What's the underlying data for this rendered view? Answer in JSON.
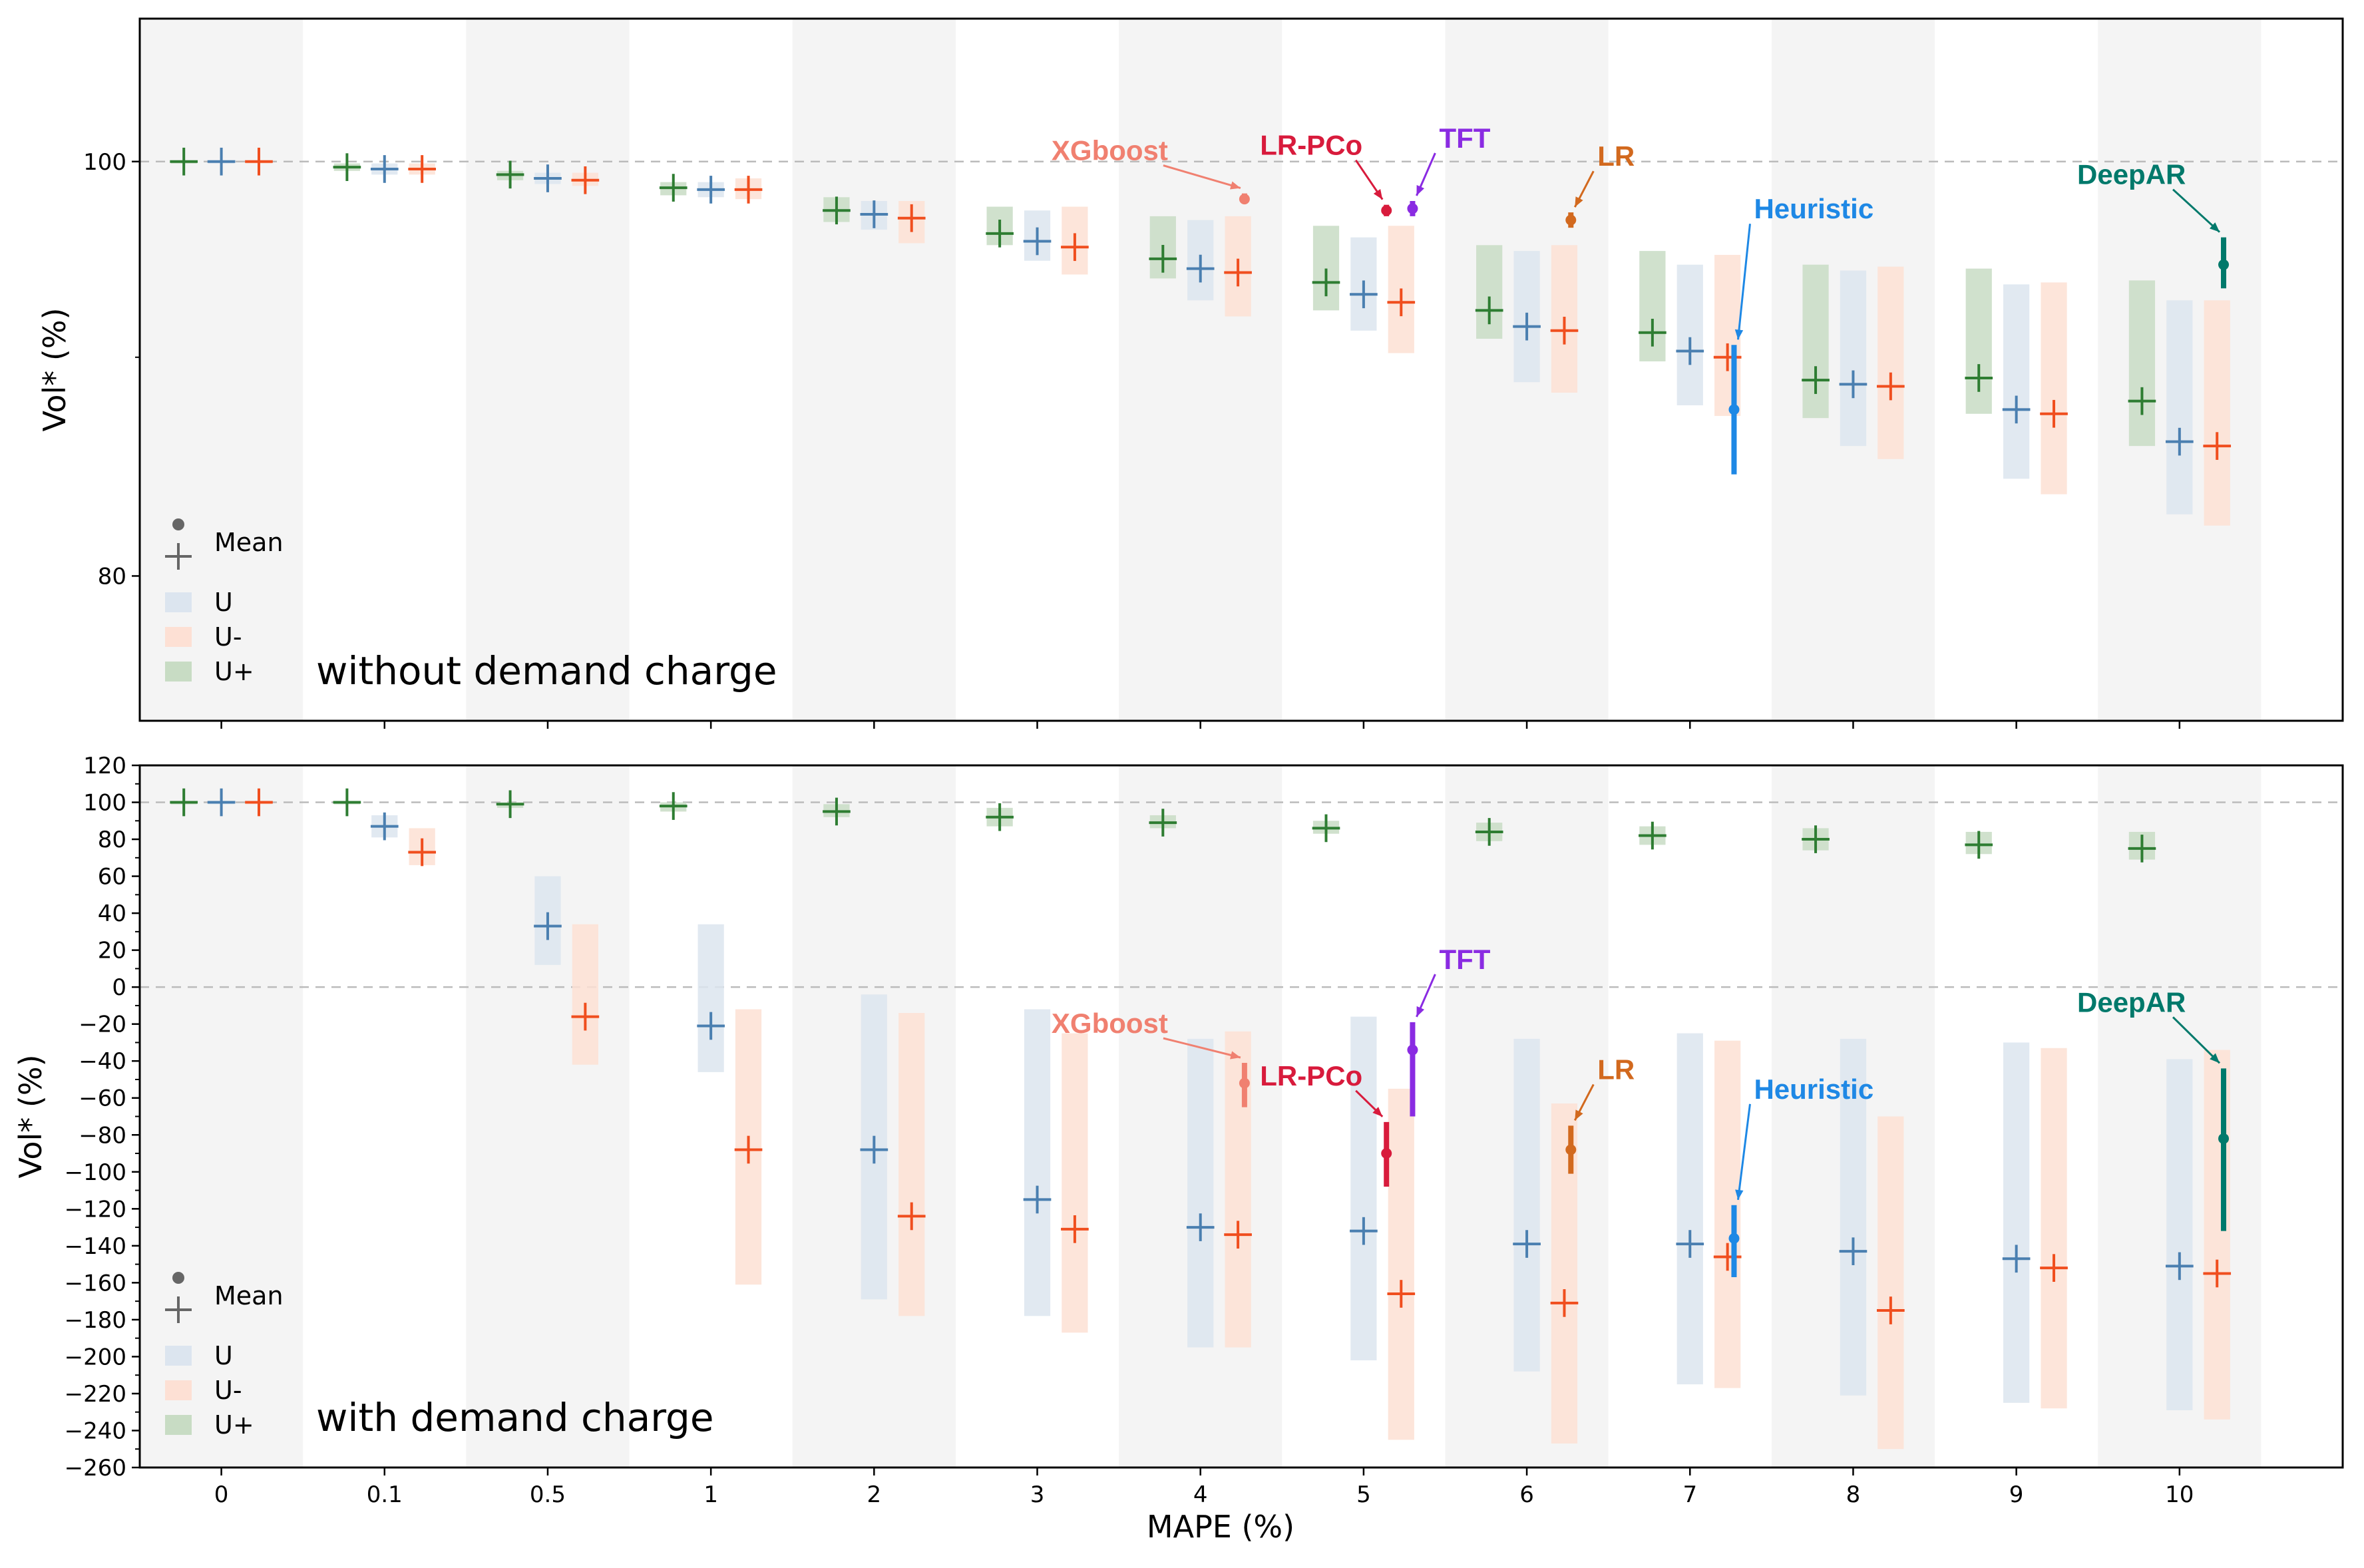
{
  "chart_data": [
    {
      "type": "scatter",
      "subtitle": "without demand charge",
      "ylabel": "Vol* (%)",
      "xlabel": "",
      "yscale": "log",
      "ylim": [
        74,
        108
      ],
      "y_ticks": [
        80,
        100
      ],
      "y_minor_ticks": [
        90
      ],
      "reference_line": 100,
      "categories": [
        "0",
        "0.1",
        "0.5",
        "1",
        "2",
        "3",
        "4",
        "5",
        "6",
        "7",
        "8",
        "9",
        "10"
      ],
      "legend": {
        "mean_label": "Mean",
        "placement": "lower-left"
      },
      "series": [
        {
          "name": "U+",
          "color": "#2e7d32",
          "fill": "#c8dcc4",
          "mean": [
            100,
            99.7,
            99.3,
            98.6,
            97.4,
            96.2,
            94.9,
            93.7,
            92.3,
            91.2,
            88.9,
            89.0,
            87.9
          ],
          "low": [
            99.9,
            99.5,
            99.0,
            98.2,
            96.8,
            95.6,
            93.9,
            92.3,
            90.9,
            89.8,
            87.1,
            87.3,
            85.8
          ],
          "high": [
            100,
            99.9,
            99.5,
            98.9,
            98.1,
            97.6,
            97.1,
            96.6,
            95.6,
            95.3,
            94.6,
            94.4,
            93.8
          ]
        },
        {
          "name": "U",
          "color": "#4a7fb0",
          "fill": "#dce5ef",
          "mean": [
            100,
            99.6,
            99.1,
            98.5,
            97.2,
            95.8,
            94.4,
            93.1,
            91.5,
            90.3,
            88.7,
            87.5,
            86.0
          ],
          "low": [
            99.9,
            99.3,
            98.8,
            98.1,
            96.4,
            94.8,
            92.8,
            91.3,
            88.8,
            87.7,
            85.8,
            84.3,
            82.7
          ],
          "high": [
            100,
            99.9,
            99.4,
            98.9,
            97.9,
            97.4,
            96.9,
            96.0,
            95.3,
            94.6,
            94.3,
            93.6,
            92.8
          ]
        },
        {
          "name": "U-",
          "color": "#f04e1e",
          "fill": "#fde0d4",
          "mean": [
            100,
            99.6,
            99.0,
            98.5,
            97.0,
            95.5,
            94.2,
            92.7,
            91.3,
            90.0,
            88.6,
            87.3,
            85.8
          ],
          "low": [
            99.9,
            99.3,
            98.7,
            98.0,
            95.7,
            94.1,
            92.0,
            90.2,
            88.3,
            87.2,
            85.2,
            83.6,
            82.2
          ],
          "high": [
            100,
            99.9,
            99.4,
            99.1,
            97.9,
            97.6,
            97.1,
            96.6,
            95.6,
            95.1,
            94.5,
            93.7,
            92.8
          ]
        }
      ],
      "models": [
        {
          "name": "XGboost",
          "color": "#f08070",
          "x_category": "4",
          "x_offset": 0.27,
          "mean": 98.0,
          "low": 97.8,
          "high": 98.3
        },
        {
          "name": "LR-PCo",
          "color": "#d81b3c",
          "x_category": "5",
          "x_offset": 0.14,
          "mean": 97.4,
          "low": 97.1,
          "high": 97.7
        },
        {
          "name": "TFT",
          "color": "#8a2be2",
          "x_category": "5",
          "x_offset": 0.3,
          "mean": 97.5,
          "low": 97.1,
          "high": 97.9
        },
        {
          "name": "LR",
          "color": "#d2691e",
          "x_category": "6",
          "x_offset": 0.27,
          "mean": 96.9,
          "low": 96.5,
          "high": 97.3
        },
        {
          "name": "Heuristic",
          "color": "#1e88e5",
          "x_category": "7",
          "x_offset": 0.27,
          "mean": 87.5,
          "low": 84.5,
          "high": 90.6
        },
        {
          "name": "DeepAR",
          "color": "#00796b",
          "x_category": "10",
          "x_offset": 0.27,
          "mean": 94.6,
          "low": 93.4,
          "high": 96.0
        }
      ]
    },
    {
      "type": "scatter",
      "subtitle": "with demand charge",
      "ylabel": "Vol* (%)",
      "xlabel": "MAPE (%)",
      "ylim": [
        -260,
        120
      ],
      "y_ticks": [
        120,
        100,
        80,
        60,
        40,
        20,
        0,
        -20,
        -40,
        -60,
        -80,
        -100,
        -120,
        -140,
        -160,
        -180,
        -200,
        -220,
        -240,
        -260
      ],
      "reference_lines": [
        100,
        0
      ],
      "categories": [
        "0",
        "0.1",
        "0.5",
        "1",
        "2",
        "3",
        "4",
        "5",
        "6",
        "7",
        "8",
        "9",
        "10"
      ],
      "legend": {
        "mean_label": "Mean",
        "placement": "lower-left"
      },
      "series": [
        {
          "name": "U+",
          "color": "#2e7d32",
          "fill": "#c8dcc4",
          "mean": [
            100,
            100,
            99,
            98,
            95,
            92,
            89,
            86,
            84,
            82,
            80,
            77,
            75
          ],
          "low": [
            100,
            99,
            97,
            95,
            92,
            87,
            86,
            83,
            79,
            77,
            74,
            72,
            69
          ],
          "high": [
            100,
            100,
            100,
            100,
            99,
            97,
            93,
            90,
            89,
            87,
            86,
            84,
            84
          ]
        },
        {
          "name": "U",
          "color": "#4a7fb0",
          "fill": "#dce5ef",
          "mean": [
            100,
            87,
            33,
            -21,
            -88,
            -115,
            -130,
            -132,
            -139,
            -139,
            -143,
            -147,
            -151
          ],
          "low": [
            99,
            81,
            12,
            -46,
            -169,
            -178,
            -195,
            -202,
            -208,
            -215,
            -221,
            -225,
            -229
          ],
          "high": [
            100,
            93,
            60,
            34,
            -4,
            -12,
            -28,
            -16,
            -28,
            -25,
            -28,
            -30,
            -39
          ]
        },
        {
          "name": "U-",
          "color": "#f04e1e",
          "fill": "#fde0d4",
          "mean": [
            100,
            73,
            -16,
            -88,
            -124,
            -131,
            -134,
            -166,
            -171,
            -146,
            -175,
            -152,
            -155
          ],
          "low": [
            99,
            66,
            -42,
            -161,
            -178,
            -187,
            -195,
            -245,
            -247,
            -217,
            -250,
            -228,
            -234
          ],
          "high": [
            100,
            86,
            34,
            -12,
            -14,
            -25,
            -24,
            -55,
            -63,
            -29,
            -70,
            -33,
            -34
          ]
        }
      ],
      "models": [
        {
          "name": "XGboost",
          "color": "#f08070",
          "x_category": "4",
          "x_offset": 0.27,
          "mean": -52,
          "low": -65,
          "high": -41
        },
        {
          "name": "LR-PCo",
          "color": "#d81b3c",
          "x_category": "5",
          "x_offset": 0.14,
          "mean": -90,
          "low": -108,
          "high": -73
        },
        {
          "name": "TFT",
          "color": "#8a2be2",
          "x_category": "5",
          "x_offset": 0.3,
          "mean": -34,
          "low": -70,
          "high": -19
        },
        {
          "name": "LR",
          "color": "#d2691e",
          "x_category": "6",
          "x_offset": 0.27,
          "mean": -88,
          "low": -101,
          "high": -75
        },
        {
          "name": "Heuristic",
          "color": "#1e88e5",
          "x_category": "7",
          "x_offset": 0.27,
          "mean": -136,
          "low": -157,
          "high": -118
        },
        {
          "name": "DeepAR",
          "color": "#00796b",
          "x_category": "10",
          "x_offset": 0.27,
          "mean": -82,
          "low": -132,
          "high": -44
        }
      ]
    }
  ]
}
